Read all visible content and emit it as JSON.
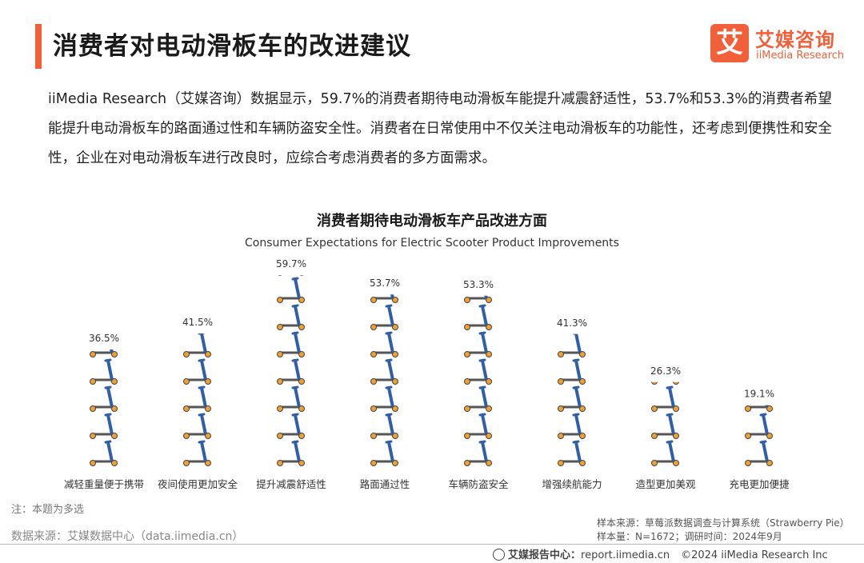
{
  "header": {
    "title": "消费者对电动滑板车的改进建议",
    "logo_mark": "艾",
    "logo_cn": "艾媒咨询",
    "logo_en": "iiMedia Research"
  },
  "intro": "iiMedia Research（艾媒咨询）数据显示，59.7%的消费者期待电动滑板车能提升减震舒适性，53.7%和53.3%的消费者希望能提升电动滑板车的路面通过性和车辆防盗安全性。消费者在日常使用中不仅关注电动滑板车的功能性，还考虑到便携性和安全性，企业在对电动滑板车进行改良时，应综合考虑消费者的多方面需求。",
  "chart_data": {
    "type": "bar",
    "title": "消费者期待电动滑板车产品改进方面",
    "subtitle": "Consumer Expectations for Electric Scooter Product Improvements",
    "categories": [
      "减轻重量便于携带",
      "夜间使用更加安全",
      "提升减震舒适性",
      "路面通过性",
      "车辆防盗安全",
      "增强续航能力",
      "造型更加美观",
      "充电更加便捷"
    ],
    "values": [
      36.5,
      41.5,
      59.7,
      53.7,
      53.3,
      41.3,
      26.3,
      19.1
    ],
    "value_labels": [
      "36.5%",
      "41.5%",
      "59.7%",
      "53.7%",
      "53.3%",
      "41.3%",
      "26.3%",
      "19.1%"
    ],
    "unit": "%",
    "pictogram": "scooter-icon",
    "colors": {
      "stem": "#2f5fa8",
      "deck": "#555555",
      "wheel": "#f0a030"
    }
  },
  "note": "注：本题为多选",
  "source": "数据来源：艾媒数据中心（data.iimedia.cn）",
  "sample_source": "样本来源：草莓派数据调查与计算系统（Strawberry Pie）",
  "sample_info": "样本量：N=1672；调研时间：2024年9月",
  "footer": {
    "report_center": "艾媒报告中心：",
    "report_url": "report.iimedia.cn",
    "copyright": "©2024  iiMedia Research  Inc"
  }
}
